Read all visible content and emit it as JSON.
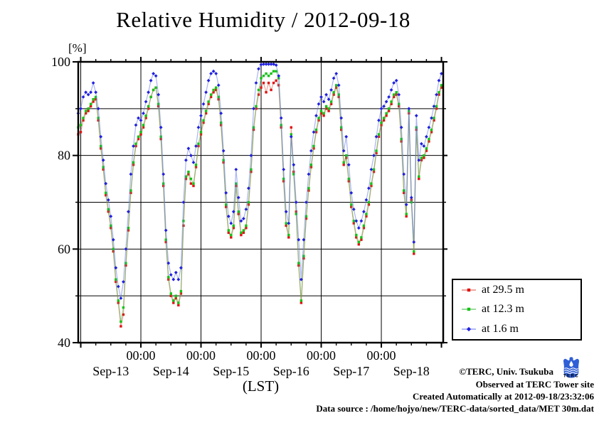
{
  "chart_data": {
    "type": "line",
    "title": "Relative Humidity / 2012-09-18",
    "xlabel": "(LST)",
    "ylabel": "[%]",
    "ylim": [
      40,
      100
    ],
    "grid": true,
    "legend_position": "outside-right-bottom",
    "y_major_ticks": [
      100,
      80,
      60,
      40
    ],
    "y_tick_labels": [
      "100",
      "80",
      "60",
      "40"
    ],
    "y_gridlines": [
      50,
      60,
      70,
      80,
      90
    ],
    "x_gridline_hours": [
      0,
      24,
      48,
      72,
      96,
      120
    ],
    "x_major_tick_hours": [
      0,
      24,
      48,
      72,
      96,
      120,
      144
    ],
    "x_minor_tick_step_hours": 6,
    "x_time_ticks": [
      {
        "hour": 24,
        "label": "00:00"
      },
      {
        "hour": 48,
        "label": "00:00"
      },
      {
        "hour": 72,
        "label": "00:00"
      },
      {
        "hour": 96,
        "label": "00:00"
      },
      {
        "hour": 120,
        "label": "00:00"
      }
    ],
    "x_day_labels": [
      {
        "hour": 12,
        "label": "Sep-13"
      },
      {
        "hour": 36,
        "label": "Sep-14"
      },
      {
        "hour": 60,
        "label": "Sep-15"
      },
      {
        "hour": 84,
        "label": "Sep-16"
      },
      {
        "hour": 108,
        "label": "Sep-17"
      },
      {
        "hour": 132,
        "label": "Sep-18"
      }
    ],
    "x_start_hour": -1,
    "x_step_hours": 1,
    "series": [
      {
        "name": "at 29.5 m",
        "marker": "square",
        "marker_color": "#e01212",
        "line_color": "#e05544",
        "values": [
          84.5,
          85,
          87.5,
          89,
          89.5,
          90.5,
          91.5,
          92,
          87.5,
          81.5,
          77,
          71.5,
          68,
          64.5,
          59.5,
          53,
          48.5,
          43.5,
          46,
          56.5,
          64,
          72,
          78,
          82,
          83.5,
          84.5,
          86,
          88,
          90,
          92.5,
          94,
          94.5,
          90.5,
          83.5,
          73.5,
          61.5,
          53.5,
          50,
          48.5,
          49.5,
          48,
          50.5,
          65,
          75,
          76,
          74,
          73.5,
          77.5,
          82,
          84.5,
          87,
          89,
          91,
          92.5,
          93.5,
          94,
          92,
          86.5,
          78.5,
          69,
          63.5,
          62.5,
          64.5,
          73.5,
          67.5,
          63,
          63.5,
          64.5,
          69.5,
          76.5,
          85.5,
          90,
          93,
          94.5,
          95.5,
          93.5,
          95.5,
          94,
          95.5,
          96,
          95,
          86,
          74.5,
          65,
          62.5,
          86,
          76.5,
          68,
          56.5,
          48.5,
          58,
          66.5,
          72.5,
          77.5,
          81.5,
          85,
          87.5,
          89,
          88.5,
          90,
          89.5,
          91,
          93,
          94.5,
          92.5,
          85.5,
          78,
          79.5,
          74.5,
          69,
          65.5,
          62.5,
          61,
          62,
          64.5,
          67,
          69.5,
          73.5,
          76.5,
          80.5,
          84,
          86.5,
          87.5,
          88.5,
          89.5,
          91,
          92.5,
          93,
          90.5,
          83,
          72,
          67,
          89,
          70.5,
          59,
          85.5,
          75,
          79,
          79.5,
          81,
          83,
          85,
          87.5,
          90,
          93,
          94.5
        ]
      },
      {
        "name": "at 12.3 m",
        "marker": "square",
        "marker_color": "#15c315",
        "line_color": "#44bb44",
        "values": [
          86,
          86.5,
          88,
          89.5,
          90,
          91,
          92,
          92.5,
          88,
          82,
          77.5,
          72,
          68.5,
          65,
          60,
          53.5,
          49,
          44.5,
          47.5,
          57,
          64.5,
          72.5,
          78.5,
          82.5,
          84,
          85,
          86.5,
          88.5,
          90.5,
          92.5,
          94,
          94.5,
          91,
          84,
          74,
          62,
          54,
          50.5,
          49,
          50,
          48.5,
          51,
          66,
          75.5,
          76.5,
          75,
          74,
          78,
          82.5,
          85,
          87.5,
          89.5,
          91.5,
          93,
          94,
          94.5,
          92.5,
          87,
          79,
          69.5,
          64,
          63,
          65,
          74,
          68,
          63.5,
          64,
          65,
          70,
          77,
          86,
          90.5,
          94,
          96.5,
          97,
          97.5,
          97,
          97.5,
          98,
          98,
          96.5,
          86.5,
          75,
          65.5,
          63,
          84.5,
          76,
          67.5,
          57,
          49,
          58.5,
          67,
          73,
          78,
          82,
          85.5,
          88,
          89.5,
          89,
          90.5,
          90,
          91.5,
          93.5,
          95,
          93,
          86,
          78.5,
          80,
          75,
          69.5,
          66,
          63,
          61.5,
          62.5,
          65,
          67.5,
          70,
          74,
          77,
          81,
          84.5,
          87,
          88,
          89,
          90,
          91.5,
          93,
          93.5,
          91,
          83.5,
          72.5,
          67.5,
          89.5,
          70,
          59.5,
          86,
          75.5,
          79.5,
          80,
          81.5,
          83.5,
          85.5,
          88,
          90.5,
          93.5,
          95
        ]
      },
      {
        "name": "at 1.6 m",
        "marker": "diamond",
        "marker_color": "#1f1fe0",
        "line_color": "#6677ee",
        "values": [
          89,
          90,
          92.5,
          93.5,
          93,
          93.5,
          95.5,
          93.5,
          90,
          84,
          79,
          74,
          70.5,
          67,
          62,
          56,
          52,
          49.5,
          53,
          60,
          68,
          76,
          82,
          86.5,
          88,
          87.5,
          89,
          91.5,
          93.5,
          96,
          97.5,
          97,
          93,
          86,
          76,
          64,
          57,
          54.5,
          53.5,
          55,
          53.5,
          56,
          70,
          79,
          81.5,
          80,
          78.5,
          82,
          86,
          88.5,
          91,
          93.5,
          96,
          97.5,
          98,
          97.5,
          95,
          89,
          81,
          72,
          67,
          65.5,
          68,
          77,
          71,
          66,
          66.5,
          68.5,
          73,
          80,
          90,
          95.5,
          98.5,
          99.4,
          99.5,
          99.5,
          99.5,
          99.5,
          99.5,
          99.3,
          97,
          88,
          77,
          68,
          65.5,
          84,
          78,
          70,
          62,
          53.5,
          62,
          70,
          76,
          81,
          85,
          88.5,
          91,
          92.5,
          91.5,
          93,
          92,
          94,
          96.5,
          97.5,
          95,
          88,
          81,
          84,
          78,
          72,
          68.5,
          66,
          64.5,
          66,
          68,
          70.5,
          73,
          77,
          80,
          84,
          87.5,
          90,
          90.5,
          91.5,
          92.5,
          94,
          95.5,
          96,
          93,
          86,
          76,
          69.5,
          90,
          71,
          61.5,
          88.5,
          79,
          82.5,
          82,
          84,
          86,
          88,
          90.5,
          93,
          96,
          97.5
        ]
      }
    ]
  },
  "footer": {
    "copyright": "©TERC, Univ. Tsukuba",
    "observed": "Observed at TERC Tower site",
    "created": "Created Automatically at 2012-09-18/23:32:06",
    "datasource": "Data source : /home/hojyo/new/TERC-data/sorted_data/MET 30m.dat",
    "logo_text": "TERC",
    "logo_color": "#2f5fd6"
  }
}
